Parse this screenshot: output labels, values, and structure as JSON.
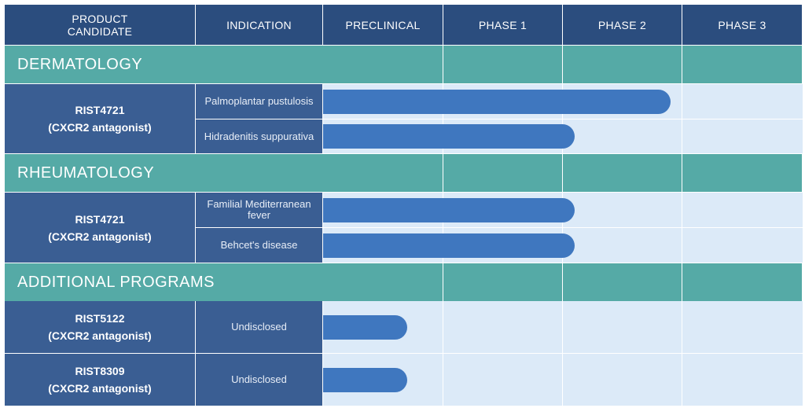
{
  "headers": {
    "product_candidate": "PRODUCT CANDIDATE",
    "indication": "INDICATION",
    "preclinical": "PRECLINICAL",
    "phase1": "PHASE 1",
    "phase2": "PHASE 2",
    "phase3": "PHASE 3"
  },
  "sections": [
    {
      "title": "DERMATOLOGY",
      "candidates": [
        {
          "name": "RIST4721",
          "mechanism": "(CXCR2 antagonist)",
          "indications": [
            {
              "label": "Palmoplantar pustulosis",
              "progress_phase": 2.9
            },
            {
              "label": "Hidradenitis suppurativa",
              "progress_phase": 2.1
            }
          ]
        }
      ]
    },
    {
      "title": "RHEUMATOLOGY",
      "candidates": [
        {
          "name": "RIST4721",
          "mechanism": "(CXCR2 antagonist)",
          "indications": [
            {
              "label": "Familial Mediterranean fever",
              "progress_phase": 2.1
            },
            {
              "label": "Behcet's disease",
              "progress_phase": 2.1
            }
          ]
        }
      ]
    },
    {
      "title": "ADDITIONAL  PROGRAMS",
      "candidates": [
        {
          "name": "RIST5122",
          "mechanism": "(CXCR2 antagonist)",
          "indications": [
            {
              "label": "Undisclosed",
              "progress_phase": 0.7
            }
          ]
        },
        {
          "name": "RIST8309",
          "mechanism": "(CXCR2 antagonist)",
          "indications": [
            {
              "label": "Undisclosed",
              "progress_phase": 0.7
            }
          ]
        }
      ]
    }
  ],
  "colors": {
    "header_bg": "#2b4d7e",
    "section_bg": "#55aaa6",
    "candidate_bg": "#3a5e93",
    "grid_bg": "#dceaf8",
    "bar": "#3f77bf"
  }
}
